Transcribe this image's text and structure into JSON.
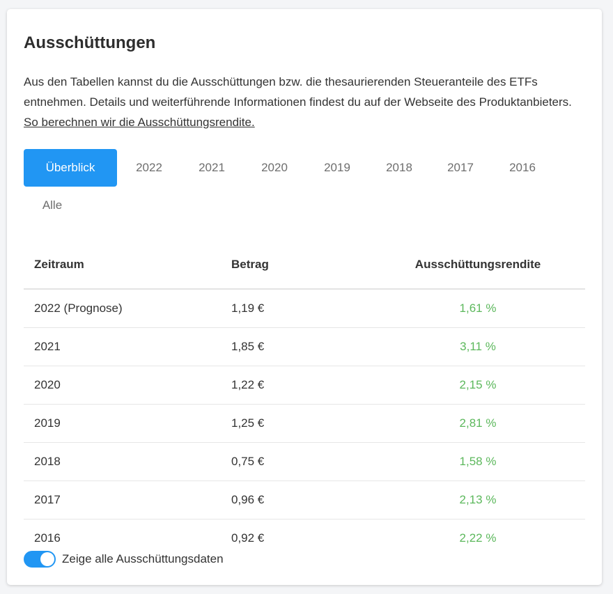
{
  "title": "Ausschüttungen",
  "description": {
    "text": "Aus den Tabellen kannst du die Ausschüttungen bzw. die thesaurierenden Steueranteile des ETFs entnehmen. Details und weiterführende Informationen findest du auf der Webseite des Produktanbieters. ",
    "link": "So berechnen wir die Ausschüttungsrendite."
  },
  "tabs": [
    "Überblick",
    "2022",
    "2021",
    "2020",
    "2019",
    "2018",
    "2017",
    "2016",
    "Alle"
  ],
  "active_tab": "Überblick",
  "table": {
    "headers": [
      "Zeitraum",
      "Betrag",
      "Ausschüttungsrendite"
    ],
    "rows": [
      {
        "period": "2022 (Prognose)",
        "amount": "1,19 €",
        "yield": "1,61 %"
      },
      {
        "period": "2021",
        "amount": "1,85 €",
        "yield": "3,11 %"
      },
      {
        "period": "2020",
        "amount": "1,22 €",
        "yield": "2,15 %"
      },
      {
        "period": "2019",
        "amount": "1,25 €",
        "yield": "2,81 %"
      },
      {
        "period": "2018",
        "amount": "0,75 €",
        "yield": "1,58 %"
      },
      {
        "period": "2017",
        "amount": "0,96 €",
        "yield": "2,13 %"
      },
      {
        "period": "2016",
        "amount": "0,92 €",
        "yield": "2,22 %"
      }
    ]
  },
  "toggle": {
    "label": "Zeige alle Ausschüttungsdaten",
    "on": true
  },
  "colors": {
    "accent": "#2196f3",
    "positive": "#5cb85c"
  }
}
